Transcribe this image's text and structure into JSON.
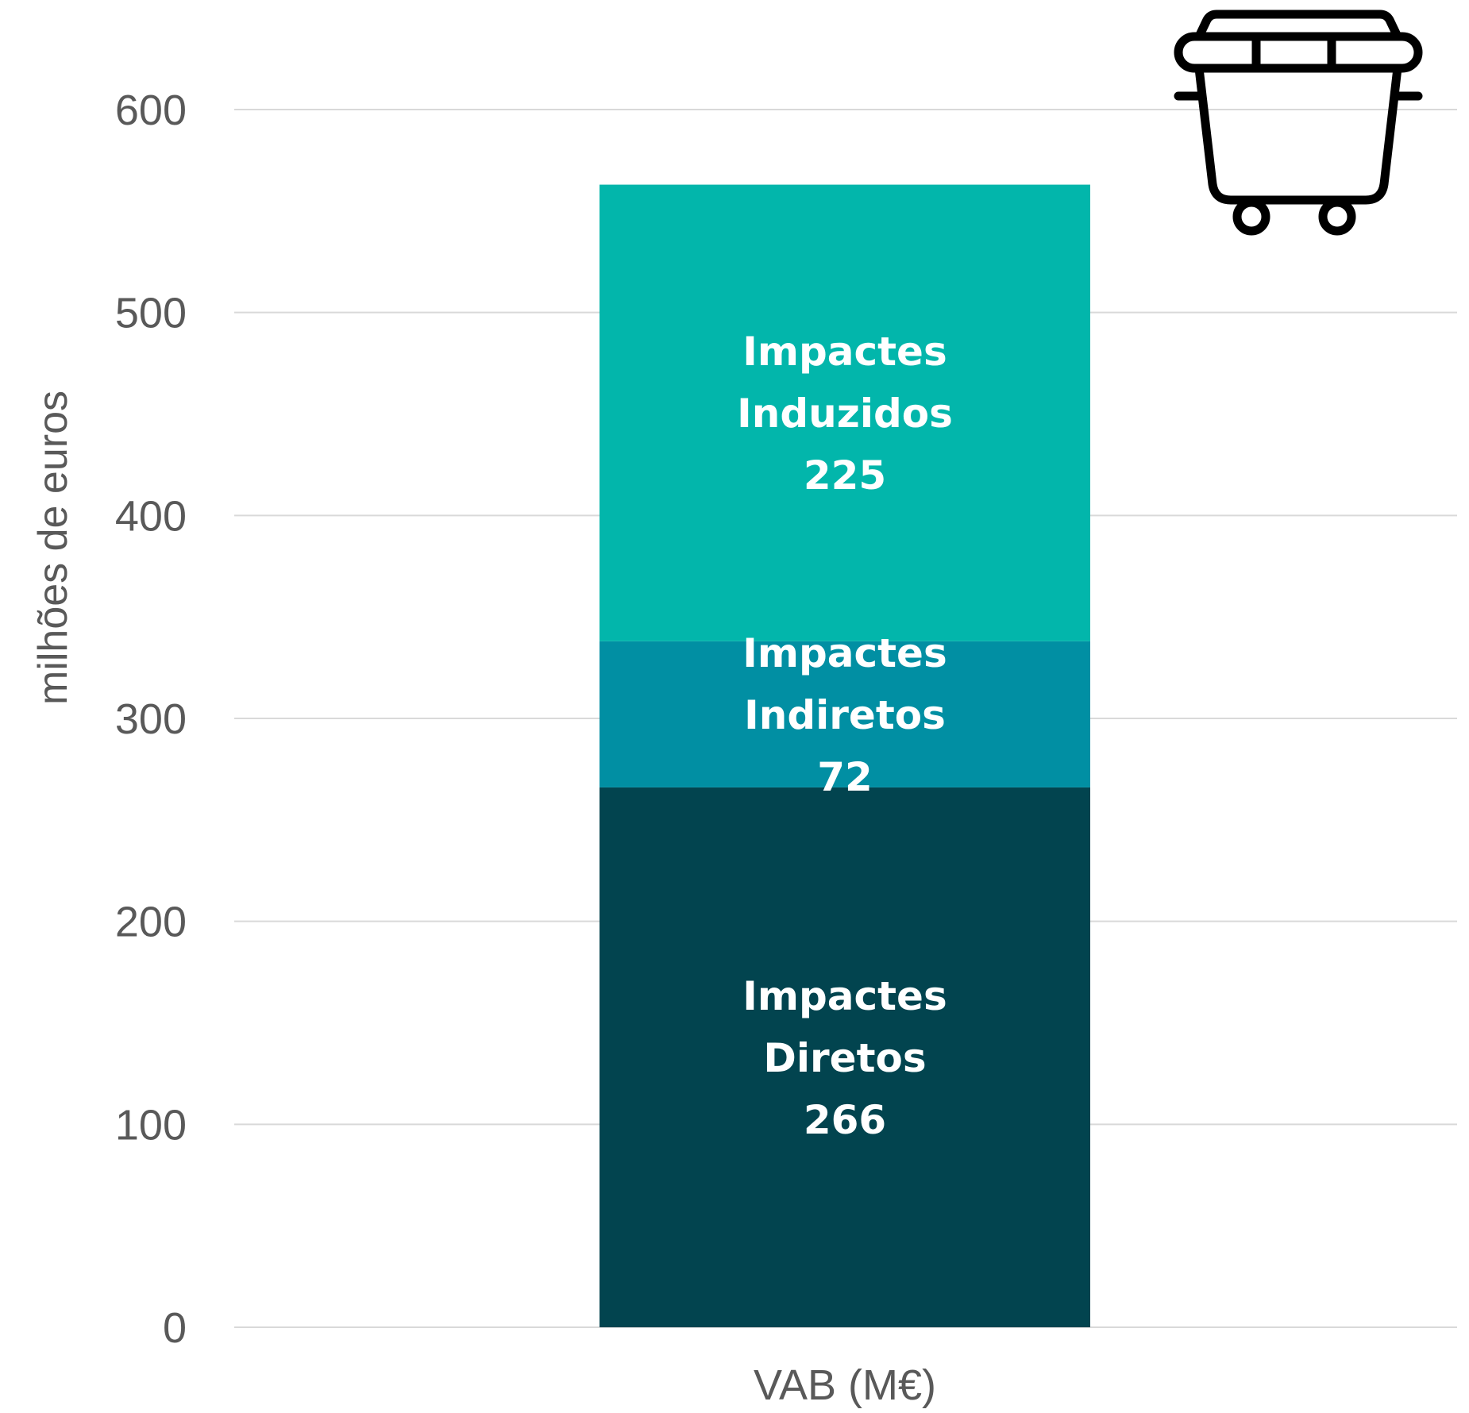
{
  "chart_data": {
    "type": "bar",
    "stacked": true,
    "categories": [
      "VAB (M€)"
    ],
    "ylabel": "milhões de euros",
    "ylim": [
      0,
      600
    ],
    "yticks": [
      0,
      100,
      200,
      300,
      400,
      500,
      600
    ],
    "grid": true,
    "legend": "none",
    "series": [
      {
        "line1": "Impactes",
        "line2": "Diretos",
        "values": [
          266
        ],
        "color": "#02444F"
      },
      {
        "line1": "Impactes",
        "line2": "Indiretos",
        "values": [
          72
        ],
        "color": "#018FA3"
      },
      {
        "line1": "Impactes",
        "line2": "Induzidos",
        "values": [
          225
        ],
        "color": "#02B6AB"
      }
    ],
    "icon": "waste-container-icon"
  }
}
